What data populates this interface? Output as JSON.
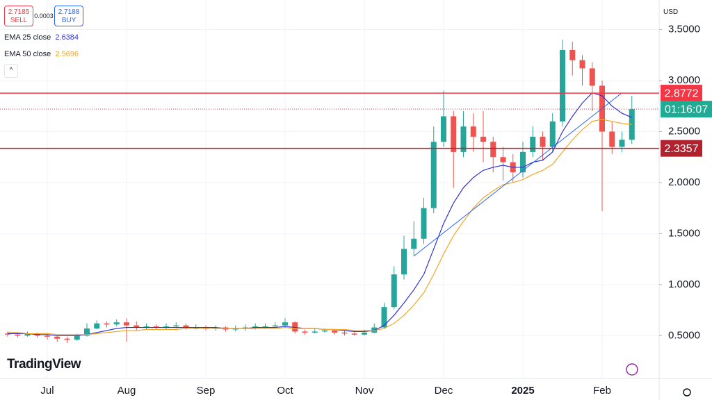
{
  "header": {
    "sell_price": "2.7185",
    "sell_label": "SELL",
    "spread": "0.0003",
    "buy_price": "2.7188",
    "buy_label": "BUY",
    "indicators": [
      {
        "name": "EMA 25 close",
        "value": "2.6384",
        "color": "#3131d6"
      },
      {
        "name": "EMA 50 close",
        "value": "2.5696",
        "color": "#f5a623"
      }
    ],
    "currency": "USD",
    "logo": "TradingView",
    "countdown": "01:16:07"
  },
  "chart_data": {
    "type": "candlestick",
    "categories": [
      null,
      null,
      null,
      null,
      "Jul",
      null,
      null,
      null,
      null,
      null,
      null,
      null,
      "Aug",
      null,
      null,
      null,
      null,
      null,
      null,
      null,
      "Sep",
      null,
      null,
      null,
      null,
      null,
      null,
      null,
      "Oct",
      null,
      null,
      null,
      null,
      null,
      null,
      null,
      "Nov",
      null,
      null,
      null,
      null,
      null,
      null,
      null,
      "Dec",
      null,
      null,
      null,
      null,
      null,
      null,
      null,
      "2025",
      null,
      null,
      null,
      null,
      null,
      null,
      null,
      "Feb",
      null,
      null,
      null
    ],
    "open": [
      0.52,
      0.51,
      0.5,
      0.52,
      0.5,
      0.49,
      0.47,
      0.46,
      0.5,
      0.57,
      0.62,
      0.61,
      0.63,
      0.6,
      0.58,
      0.59,
      0.58,
      0.59,
      0.6,
      0.58,
      0.58,
      0.57,
      0.58,
      0.56,
      0.57,
      0.58,
      0.59,
      0.59,
      0.6,
      0.63,
      0.54,
      0.53,
      0.54,
      0.55,
      0.53,
      0.52,
      0.51,
      0.53,
      0.58,
      0.78,
      1.1,
      1.35,
      1.45,
      1.75,
      2.4,
      2.65,
      2.3,
      2.55,
      2.45,
      2.4,
      2.25,
      2.2,
      2.1,
      2.3,
      2.45,
      2.35,
      2.6,
      3.3,
      3.2,
      3.12,
      2.95,
      2.5,
      2.35,
      2.42
    ],
    "high": [
      0.54,
      0.53,
      0.54,
      0.53,
      0.52,
      0.5,
      0.49,
      0.52,
      0.62,
      0.65,
      0.64,
      0.66,
      0.67,
      0.64,
      0.62,
      0.61,
      0.62,
      0.63,
      0.62,
      0.61,
      0.6,
      0.6,
      0.59,
      0.6,
      0.61,
      0.62,
      0.62,
      0.63,
      0.67,
      0.64,
      0.56,
      0.57,
      0.57,
      0.56,
      0.55,
      0.54,
      0.56,
      0.62,
      0.82,
      1.18,
      1.48,
      1.62,
      1.85,
      2.55,
      2.9,
      2.7,
      2.7,
      2.68,
      2.7,
      2.45,
      2.35,
      2.28,
      2.4,
      2.55,
      2.5,
      2.68,
      3.4,
      3.38,
      3.25,
      3.18,
      3.0,
      2.6,
      2.5,
      2.85
    ],
    "low": [
      0.49,
      0.48,
      0.49,
      0.48,
      0.46,
      0.44,
      0.43,
      0.45,
      0.49,
      0.56,
      0.58,
      0.59,
      0.44,
      0.55,
      0.56,
      0.56,
      0.56,
      0.57,
      0.56,
      0.56,
      0.55,
      0.55,
      0.54,
      0.54,
      0.55,
      0.56,
      0.57,
      0.57,
      0.58,
      0.52,
      0.51,
      0.52,
      0.53,
      0.51,
      0.5,
      0.5,
      0.5,
      0.52,
      0.57,
      0.76,
      1.05,
      1.28,
      1.4,
      1.7,
      2.35,
      1.95,
      2.25,
      2.3,
      2.2,
      2.1,
      2.02,
      2.0,
      2.05,
      2.25,
      2.22,
      2.3,
      2.55,
      3.05,
      2.95,
      2.7,
      1.72,
      2.28,
      2.3,
      2.38
    ],
    "close": [
      0.51,
      0.5,
      0.52,
      0.5,
      0.49,
      0.47,
      0.46,
      0.5,
      0.57,
      0.62,
      0.61,
      0.63,
      0.6,
      0.58,
      0.59,
      0.58,
      0.59,
      0.6,
      0.58,
      0.58,
      0.57,
      0.58,
      0.56,
      0.57,
      0.58,
      0.59,
      0.59,
      0.6,
      0.63,
      0.54,
      0.53,
      0.54,
      0.55,
      0.53,
      0.52,
      0.51,
      0.53,
      0.58,
      0.78,
      1.1,
      1.35,
      1.45,
      1.75,
      2.4,
      2.65,
      2.3,
      2.55,
      2.45,
      2.4,
      2.25,
      2.2,
      2.1,
      2.3,
      2.45,
      2.35,
      2.6,
      3.3,
      3.2,
      3.12,
      2.95,
      2.5,
      2.35,
      2.42,
      2.72
    ],
    "up_color": "#26a69a",
    "down_color": "#ef5350",
    "series": [
      {
        "name": "EMA 25",
        "color": "#3131d6",
        "values": [
          0.52,
          0.52,
          0.52,
          0.51,
          0.51,
          0.5,
          0.5,
          0.5,
          0.51,
          0.53,
          0.55,
          0.57,
          0.58,
          0.58,
          0.58,
          0.58,
          0.58,
          0.58,
          0.58,
          0.58,
          0.58,
          0.58,
          0.57,
          0.57,
          0.57,
          0.58,
          0.58,
          0.58,
          0.59,
          0.58,
          0.57,
          0.57,
          0.56,
          0.56,
          0.55,
          0.54,
          0.54,
          0.55,
          0.6,
          0.7,
          0.82,
          0.95,
          1.1,
          1.35,
          1.6,
          1.8,
          1.95,
          2.05,
          2.12,
          2.15,
          2.17,
          2.15,
          2.15,
          2.2,
          2.22,
          2.3,
          2.5,
          2.65,
          2.78,
          2.88,
          2.85,
          2.75,
          2.68,
          2.6384
        ]
      },
      {
        "name": "EMA 50",
        "color": "#f5a623",
        "values": [
          0.53,
          0.53,
          0.52,
          0.52,
          0.52,
          0.51,
          0.51,
          0.51,
          0.51,
          0.52,
          0.53,
          0.54,
          0.55,
          0.55,
          0.56,
          0.56,
          0.56,
          0.56,
          0.57,
          0.57,
          0.57,
          0.57,
          0.57,
          0.57,
          0.57,
          0.57,
          0.57,
          0.57,
          0.58,
          0.57,
          0.57,
          0.57,
          0.56,
          0.56,
          0.56,
          0.55,
          0.55,
          0.55,
          0.57,
          0.62,
          0.7,
          0.8,
          0.92,
          1.1,
          1.3,
          1.48,
          1.62,
          1.75,
          1.85,
          1.92,
          1.98,
          2.0,
          2.03,
          2.08,
          2.12,
          2.18,
          2.3,
          2.42,
          2.52,
          2.6,
          2.62,
          2.6,
          2.58,
          2.5696
        ]
      }
    ],
    "trendline": {
      "start": 1.28,
      "end": 2.88,
      "color": "#2962ff"
    },
    "levels": [
      {
        "value": 2.8772,
        "color": "#f23645"
      },
      {
        "value": 2.3357,
        "color": "#b2222e"
      }
    ],
    "price_line_color": "#f23645",
    "countdown_color": "#22ab94",
    "ylim": [
      0.08,
      3.79
    ],
    "yticks": [
      {
        "value": 0.5,
        "label": "0.5000"
      },
      {
        "value": 1,
        "label": "1.0000"
      },
      {
        "value": 1.5,
        "label": "1.5000"
      },
      {
        "value": 2,
        "label": "2.0000"
      },
      {
        "value": 2.5,
        "label": "2.5000"
      },
      {
        "value": 3,
        "label": "3.0000"
      },
      {
        "value": 3.5,
        "label": "3.5000"
      }
    ],
    "grid": true
  }
}
